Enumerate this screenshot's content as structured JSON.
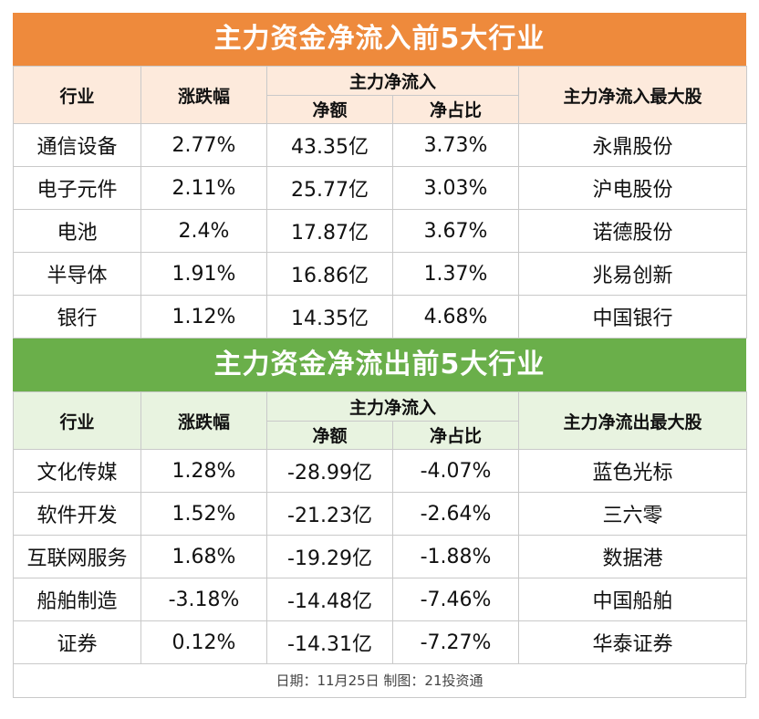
{
  "inflow": {
    "title": "主力资金净流入前5大行业",
    "headers": {
      "industry": "行业",
      "change": "涨跌幅",
      "main_flow": "主力净流入",
      "net_amount": "净额",
      "net_ratio": "净占比",
      "top_stock": "主力净流入最大股"
    },
    "rows": [
      {
        "industry": "通信设备",
        "change": "2.77%",
        "net_amount": "43.35亿",
        "net_ratio": "3.73%",
        "top_stock": "永鼎股份"
      },
      {
        "industry": "电子元件",
        "change": "2.11%",
        "net_amount": "25.77亿",
        "net_ratio": "3.03%",
        "top_stock": "沪电股份"
      },
      {
        "industry": "电池",
        "change": "2.4%",
        "net_amount": "17.87亿",
        "net_ratio": "3.67%",
        "top_stock": "诺德股份"
      },
      {
        "industry": "半导体",
        "change": "1.91%",
        "net_amount": "16.86亿",
        "net_ratio": "1.37%",
        "top_stock": "兆易创新"
      },
      {
        "industry": "银行",
        "change": "1.12%",
        "net_amount": "14.35亿",
        "net_ratio": "4.68%",
        "top_stock": "中国银行"
      }
    ]
  },
  "outflow": {
    "title": "主力资金净流出前5大行业",
    "headers": {
      "industry": "行业",
      "change": "涨跌幅",
      "main_flow": "主力净流入",
      "net_amount": "净额",
      "net_ratio": "净占比",
      "top_stock": "主力净流出最大股"
    },
    "rows": [
      {
        "industry": "文化传媒",
        "change": "1.28%",
        "net_amount": "-28.99亿",
        "net_ratio": "-4.07%",
        "top_stock": "蓝色光标"
      },
      {
        "industry": "软件开发",
        "change": "1.52%",
        "net_amount": "-21.23亿",
        "net_ratio": "-2.64%",
        "top_stock": "三六零"
      },
      {
        "industry": "互联网服务",
        "change": "1.68%",
        "net_amount": "-19.29亿",
        "net_ratio": "-1.88%",
        "top_stock": "数据港"
      },
      {
        "industry": "船舶制造",
        "change": "-3.18%",
        "net_amount": "-14.48亿",
        "net_ratio": "-7.46%",
        "top_stock": "中国船舶"
      },
      {
        "industry": "证券",
        "change": "0.12%",
        "net_amount": "-14.31亿",
        "net_ratio": "-7.27%",
        "top_stock": "华泰证券"
      }
    ]
  },
  "footer": "日期：11月25日 制图：21投资通",
  "colors": {
    "inflow_title": "#ee8a3c",
    "outflow_title": "#6aaf4a"
  }
}
